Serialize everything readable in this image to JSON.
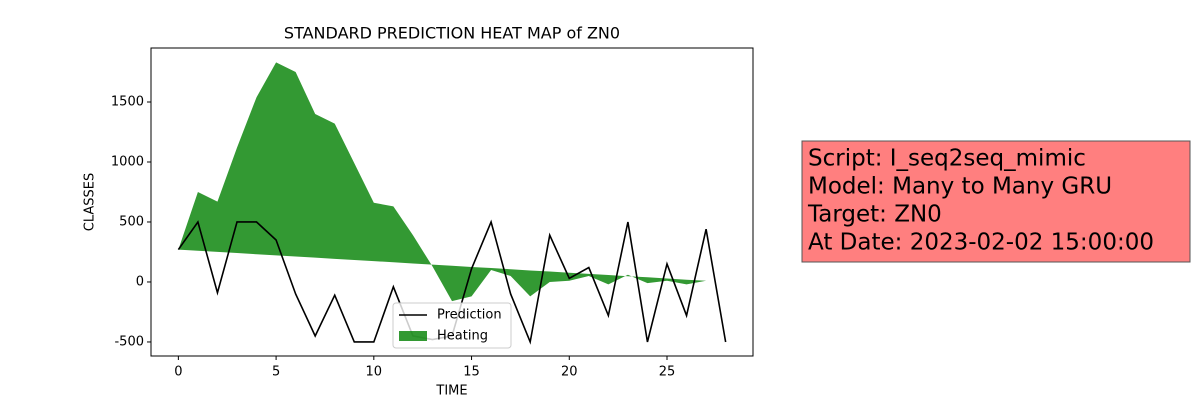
{
  "chart_data": {
    "type": "line",
    "title": "STANDARD PREDICTION HEAT MAP of ZN0",
    "x_label": "TIME",
    "y_label": "CLASSES",
    "x": [
      0,
      1,
      2,
      3,
      4,
      5,
      6,
      7,
      8,
      9,
      10,
      11,
      12,
      13,
      14,
      15,
      16,
      17,
      18,
      19,
      20,
      21,
      22,
      23,
      24,
      25,
      26,
      27,
      28
    ],
    "series": [
      {
        "name": "Prediction",
        "color": "#000000",
        "kind": "line",
        "values": [
          270,
          500,
          -90,
          500,
          500,
          350,
          -100,
          -450,
          -110,
          -500,
          -500,
          -40,
          -450,
          -480,
          -450,
          110,
          500,
          -100,
          -500,
          390,
          30,
          120,
          -280,
          500,
          -500,
          150,
          -280,
          440,
          -500
        ]
      },
      {
        "name": "Heating",
        "color": "#008000",
        "alpha": 0.8,
        "kind": "area",
        "values": [
          270,
          750,
          670,
          1120,
          1540,
          1830,
          1750,
          1400,
          1320,
          990,
          660,
          630,
          390,
          130,
          -160,
          -120,
          100,
          50,
          -120,
          0,
          10,
          50,
          -20,
          60,
          -10,
          10,
          -20,
          10,
          0
        ],
        "lower": [
          270,
          260,
          251,
          241,
          231,
          222,
          212,
          203,
          193,
          183,
          174,
          164,
          154,
          145,
          135,
          125,
          116,
          106,
          96,
          87,
          77,
          67,
          58,
          48,
          39,
          29,
          19,
          10,
          0
        ]
      }
    ],
    "xlim": [
      -1.4,
      29.4
    ],
    "xticks": [
      0,
      5,
      10,
      15,
      20,
      25
    ],
    "ylim": [
      -617,
      1950
    ],
    "yticks": [
      -500,
      0,
      500,
      1000,
      1500
    ],
    "legend": "lower center",
    "annotation": [
      "Script: I_seq2seq_mimic",
      "Model: Many to Many GRU",
      "Target: ZN0",
      "At Date: 2023-02-02 15:00:00"
    ],
    "annotation_color": "#ff7f7f"
  }
}
